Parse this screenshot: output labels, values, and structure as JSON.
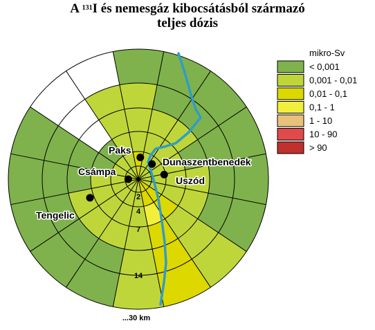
{
  "title": {
    "prefix": "A ",
    "isotope_mass": "131",
    "line1_rest": "I és nemesgáz kibocsátásból származó",
    "line2": "teljes dózis"
  },
  "colors": {
    "none": "#ffffff",
    "c1": "#7fb24c",
    "c2": "#bfd63a",
    "c3": "#dcd800",
    "c4": "#f2ef3c",
    "c5": "#e8c27a",
    "c6": "#e04a4a",
    "c7": "#c0302c",
    "river": "#2f9dc7"
  },
  "legend": {
    "unit": "mikro-Sv",
    "items": [
      {
        "label": "< 0,001",
        "color": "#7fb24c"
      },
      {
        "label": "0,001 - 0,01",
        "color": "#bfd63a"
      },
      {
        "label": "0,01 - 0,1",
        "color": "#dcd800"
      },
      {
        "label": "0,1 - 1",
        "color": "#f2ef3c"
      },
      {
        "label": "1 - 10",
        "color": "#e8c27a"
      },
      {
        "label": "10 - 90",
        "color": "#e04a4a"
      },
      {
        "label": "> 90",
        "color": "#c0302c"
      }
    ]
  },
  "distance_labels": [
    "2",
    "4",
    "7",
    "14",
    "...30 km"
  ],
  "ring_radii_km": [
    2,
    4,
    7,
    14,
    30
  ],
  "sector_count": 16,
  "sectors": [
    [
      "c3",
      "c3",
      "c2",
      "c2",
      "c2",
      "c1"
    ],
    [
      "c2",
      "c2",
      "c2",
      "c2",
      "c1",
      "c1"
    ],
    [
      "c2",
      "c2",
      "c2",
      "c2",
      "c1",
      "c1"
    ],
    [
      "c2",
      "c2",
      "c2",
      "c1",
      "c1",
      "c1"
    ],
    [
      "c2",
      "c2",
      "c2",
      "c2",
      "c1",
      "c1"
    ],
    [
      "c2",
      "c2",
      "c2",
      "c2",
      "c1",
      "c1"
    ],
    [
      "c3",
      "c3",
      "c3",
      "c2",
      "c2",
      "c2"
    ],
    [
      "c3",
      "c3",
      "c4",
      "c3",
      "c3",
      "c3"
    ],
    [
      "c2",
      "c2",
      "c2",
      "c2",
      "c2",
      "c2"
    ],
    [
      "c2",
      "c2",
      "c2",
      "c2",
      "c1",
      "c1"
    ],
    [
      "c2",
      "c2",
      "c2",
      "c2",
      "c1",
      "c1"
    ],
    [
      "c2",
      "c2",
      "c2",
      "c2",
      "c1",
      "c1"
    ],
    [
      "c2",
      "c2",
      "c2",
      "c1",
      "c1",
      "c1"
    ],
    [
      "c2",
      "c2",
      "c1",
      "c1",
      "c1",
      "c1"
    ],
    [
      "c2",
      "c2",
      "c1",
      "none",
      "none",
      "none"
    ],
    [
      "c2",
      "c2",
      "c2",
      "c2",
      "c2",
      "none"
    ]
  ],
  "places": [
    {
      "name": "Paks",
      "km": 3.2,
      "bearing_deg": 5
    },
    {
      "name": "Dunaszentbenedek",
      "km": 3.0,
      "bearing_deg": 42
    },
    {
      "name": "Csámpa",
      "km": 1.6,
      "bearing_deg": 270
    },
    {
      "name": "Uszód",
      "km": 3.8,
      "bearing_deg": 80
    },
    {
      "name": "Tengelic",
      "km": 7.6,
      "bearing_deg": 249
    }
  ]
}
